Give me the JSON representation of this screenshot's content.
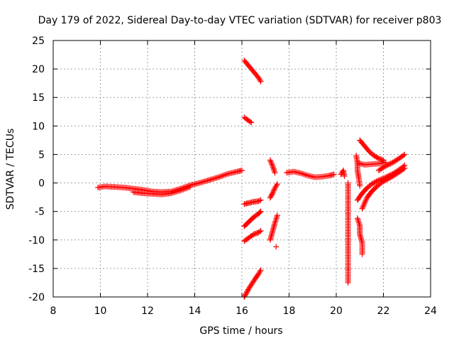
{
  "chart_data": {
    "type": "scatter",
    "title": "Day 179 of 2022, Sidereal Day-to-day VTEC variation (SDTVAR) for receiver p803",
    "xlabel": "GPS time / hours",
    "ylabel": "SDTVAR / TECUs",
    "xlim": [
      8,
      24
    ],
    "ylim": [
      -20,
      25
    ],
    "xticks": [
      "8",
      "10",
      "12",
      "14",
      "16",
      "18",
      "20",
      "22",
      "24"
    ],
    "yticks": [
      "-20",
      "-15",
      "-10",
      "-5",
      "0",
      "5",
      "10",
      "15",
      "20",
      "25"
    ],
    "grid": true,
    "marker": "+",
    "color": "#ff0000",
    "series": [
      {
        "name": "main-band",
        "x": [
          9.9,
          10.2,
          10.6,
          11.0,
          11.4,
          11.8,
          12.2,
          12.6,
          13.0,
          13.4,
          13.8,
          14.2,
          14.6,
          15.0,
          15.4,
          15.8,
          16.0
        ],
        "y": [
          -0.8,
          -0.6,
          -0.7,
          -0.8,
          -1.0,
          -1.2,
          -1.5,
          -1.6,
          -1.5,
          -1.0,
          -0.4,
          0.0,
          0.5,
          1.0,
          1.6,
          2.0,
          2.2
        ]
      },
      {
        "name": "main-band-lower",
        "x": [
          11.4,
          11.8,
          12.2,
          12.6,
          13.0,
          13.4,
          13.8
        ],
        "y": [
          -1.6,
          -1.8,
          -1.9,
          -2.0,
          -1.8,
          -1.3,
          -0.7
        ]
      },
      {
        "name": "arc-top",
        "x": [
          16.1,
          16.3,
          16.5,
          16.7,
          16.8
        ],
        "y": [
          21.5,
          20.5,
          19.5,
          18.5,
          17.8
        ]
      },
      {
        "name": "arc-11",
        "x": [
          16.1,
          16.2,
          16.3,
          16.4
        ],
        "y": [
          11.5,
          11.2,
          10.9,
          10.6
        ]
      },
      {
        "name": "arc-minus3",
        "x": [
          16.1,
          16.3,
          16.5,
          16.7,
          16.8
        ],
        "y": [
          -3.7,
          -3.5,
          -3.3,
          -3.2,
          -3.0
        ]
      },
      {
        "name": "arc-minus6",
        "x": [
          16.1,
          16.3,
          16.5,
          16.7,
          16.8
        ],
        "y": [
          -7.6,
          -6.8,
          -6.0,
          -5.4,
          -5.0
        ]
      },
      {
        "name": "arc-minus9",
        "x": [
          16.1,
          16.3,
          16.5,
          16.7,
          16.8
        ],
        "y": [
          -10.2,
          -9.6,
          -9.0,
          -8.7,
          -8.4
        ]
      },
      {
        "name": "arc-bottom",
        "x": [
          16.1,
          16.3,
          16.5,
          16.7,
          16.8
        ],
        "y": [
          -20.0,
          -18.5,
          -17.2,
          -16.0,
          -15.3
        ]
      },
      {
        "name": "arc-17-upper",
        "x": [
          17.2,
          17.3,
          17.4
        ],
        "y": [
          4.0,
          3.0,
          1.8
        ]
      },
      {
        "name": "arc-17-mid",
        "x": [
          17.2,
          17.3,
          17.4,
          17.5
        ],
        "y": [
          -2.6,
          -1.8,
          -0.9,
          -0.2
        ]
      },
      {
        "name": "arc-17-low",
        "x": [
          17.2,
          17.3,
          17.4,
          17.5
        ],
        "y": [
          -10.0,
          -8.5,
          -7.0,
          -5.7
        ]
      },
      {
        "name": "arc-17-point",
        "x": [
          17.45
        ],
        "y": [
          -11.2
        ]
      },
      {
        "name": "mid-band",
        "x": [
          17.9,
          18.2,
          18.5,
          18.8,
          19.1,
          19.4,
          19.7,
          19.9
        ],
        "y": [
          1.8,
          2.0,
          1.7,
          1.3,
          1.0,
          1.1,
          1.3,
          1.5
        ]
      },
      {
        "name": "arc-20.3",
        "x": [
          20.2,
          20.3,
          20.35
        ],
        "y": [
          1.5,
          2.2,
          1.2
        ]
      },
      {
        "name": "lone-20.5",
        "x": [
          20.5,
          20.5,
          20.5,
          20.5,
          20.5
        ],
        "y": [
          0.0,
          -7.0,
          -13.0,
          -16.5,
          -17.5
        ]
      },
      {
        "name": "arc-21-up",
        "x": [
          21.0,
          21.2,
          21.4,
          21.6,
          21.8,
          22.0
        ],
        "y": [
          7.5,
          6.5,
          5.5,
          4.8,
          4.3,
          4.0
        ]
      },
      {
        "name": "arc-21-flat",
        "x": [
          20.9,
          21.2,
          21.5,
          21.8,
          22.1
        ],
        "y": [
          3.5,
          3.2,
          3.3,
          3.4,
          3.6
        ]
      },
      {
        "name": "arc-21-side",
        "x": [
          20.85,
          20.9,
          20.9,
          20.95,
          21.0
        ],
        "y": [
          4.8,
          3.5,
          2.2,
          1.0,
          -0.5
        ]
      },
      {
        "name": "arc-21-low",
        "x": [
          20.9,
          21.0,
          21.0,
          21.1,
          21.1
        ],
        "y": [
          -6.2,
          -7.5,
          -9.0,
          -10.5,
          -12.5
        ]
      },
      {
        "name": "rising-1",
        "x": [
          21.1,
          21.3,
          21.5,
          21.7,
          21.9,
          22.1,
          22.4,
          22.7,
          22.9
        ],
        "y": [
          -4.5,
          -2.6,
          -1.5,
          -0.7,
          0.0,
          0.5,
          1.2,
          2.0,
          2.6
        ]
      },
      {
        "name": "rising-2",
        "x": [
          20.9,
          21.1,
          21.3,
          21.5,
          21.8,
          22.1,
          22.4,
          22.7,
          22.9
        ],
        "y": [
          -3.0,
          -1.8,
          -0.9,
          -0.2,
          0.5,
          1.0,
          1.6,
          2.4,
          3.1
        ]
      },
      {
        "name": "rising-3",
        "x": [
          21.8,
          22.1,
          22.4,
          22.7,
          22.9
        ],
        "y": [
          2.2,
          3.0,
          3.6,
          4.4,
          5.0
        ]
      }
    ]
  }
}
